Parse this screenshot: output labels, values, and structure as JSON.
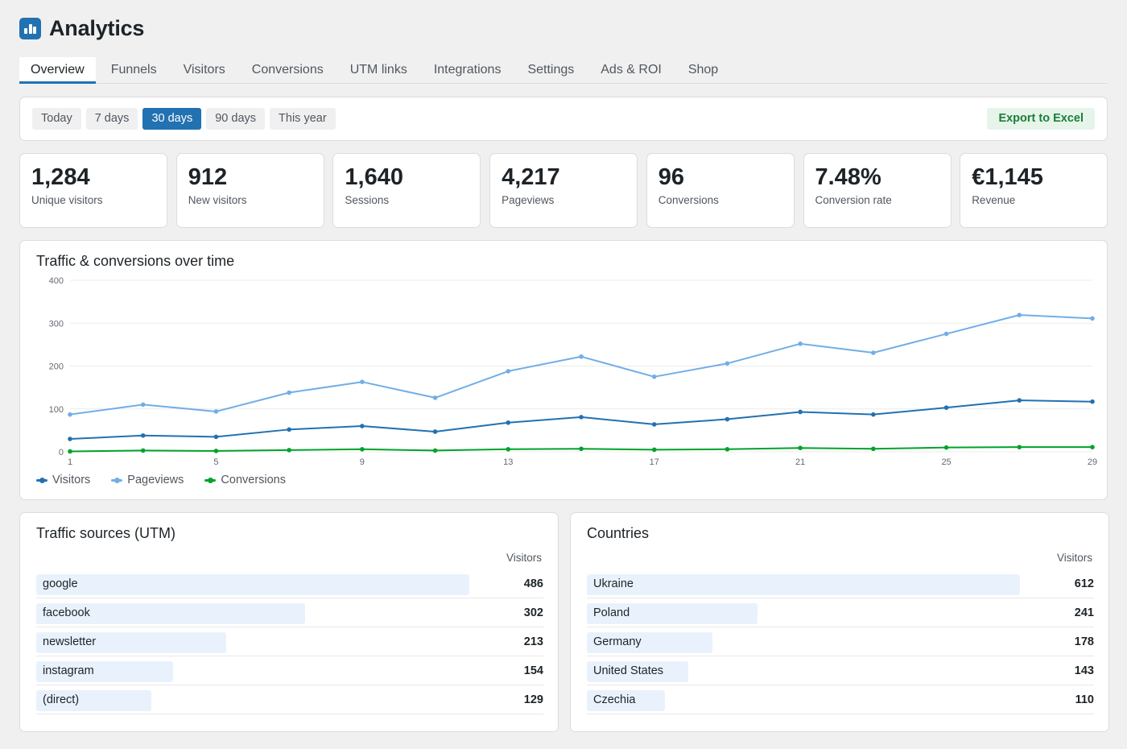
{
  "app": {
    "title": "Analytics",
    "logo_icon": "bar-chart-icon"
  },
  "tabs": [
    {
      "label": "Overview",
      "active": true
    },
    {
      "label": "Funnels"
    },
    {
      "label": "Visitors"
    },
    {
      "label": "Conversions"
    },
    {
      "label": "UTM links"
    },
    {
      "label": "Integrations"
    },
    {
      "label": "Settings"
    },
    {
      "label": "Ads & ROI"
    },
    {
      "label": "Shop"
    }
  ],
  "ranges": [
    {
      "label": "Today"
    },
    {
      "label": "7 days"
    },
    {
      "label": "30 days",
      "active": true
    },
    {
      "label": "90 days"
    },
    {
      "label": "This year"
    }
  ],
  "export": {
    "label": "Export to Excel"
  },
  "kpis": [
    {
      "value": "1,284",
      "label": "Unique visitors"
    },
    {
      "value": "912",
      "label": "New visitors"
    },
    {
      "value": "1,640",
      "label": "Sessions"
    },
    {
      "value": "4,217",
      "label": "Pageviews"
    },
    {
      "value": "96",
      "label": "Conversions"
    },
    {
      "value": "7.48%",
      "label": "Conversion rate"
    },
    {
      "value": "€1,145",
      "label": "Revenue"
    }
  ],
  "chart_data": {
    "type": "line",
    "title": "Traffic & conversions over time",
    "x": [
      1,
      3,
      5,
      7,
      9,
      11,
      13,
      15,
      17,
      19,
      21,
      23,
      25,
      27,
      29
    ],
    "x_ticks": [
      1,
      5,
      9,
      13,
      17,
      21,
      25,
      29
    ],
    "y_ticks": [
      0,
      100,
      200,
      300,
      400
    ],
    "ylim": [
      0,
      400
    ],
    "grid": true,
    "legend": "bottom-left",
    "series": [
      {
        "name": "Visitors",
        "color": "#2271b1",
        "values": [
          30,
          38,
          35,
          52,
          60,
          47,
          68,
          81,
          64,
          76,
          93,
          87,
          103,
          120,
          117
        ]
      },
      {
        "name": "Pageviews",
        "color": "#72aee6",
        "values": [
          87,
          110,
          94,
          138,
          163,
          126,
          188,
          222,
          175,
          206,
          252,
          231,
          275,
          319,
          311
        ]
      },
      {
        "name": "Conversions",
        "color": "#00a32a",
        "values": [
          1,
          3,
          2,
          4,
          6,
          3,
          6,
          7,
          5,
          6,
          9,
          7,
          10,
          11,
          11
        ]
      }
    ]
  },
  "sources": {
    "title": "Traffic sources (UTM)",
    "column": "Visitors",
    "rows": [
      {
        "label": "google",
        "value": 486
      },
      {
        "label": "facebook",
        "value": 302
      },
      {
        "label": "newsletter",
        "value": 213
      },
      {
        "label": "instagram",
        "value": 154
      },
      {
        "label": "(direct)",
        "value": 129
      }
    ]
  },
  "countries": {
    "title": "Countries",
    "column": "Visitors",
    "rows": [
      {
        "label": "Ukraine",
        "value": 612
      },
      {
        "label": "Poland",
        "value": 241
      },
      {
        "label": "Germany",
        "value": 178
      },
      {
        "label": "United States",
        "value": 143
      },
      {
        "label": "Czechia",
        "value": 110
      }
    ]
  }
}
